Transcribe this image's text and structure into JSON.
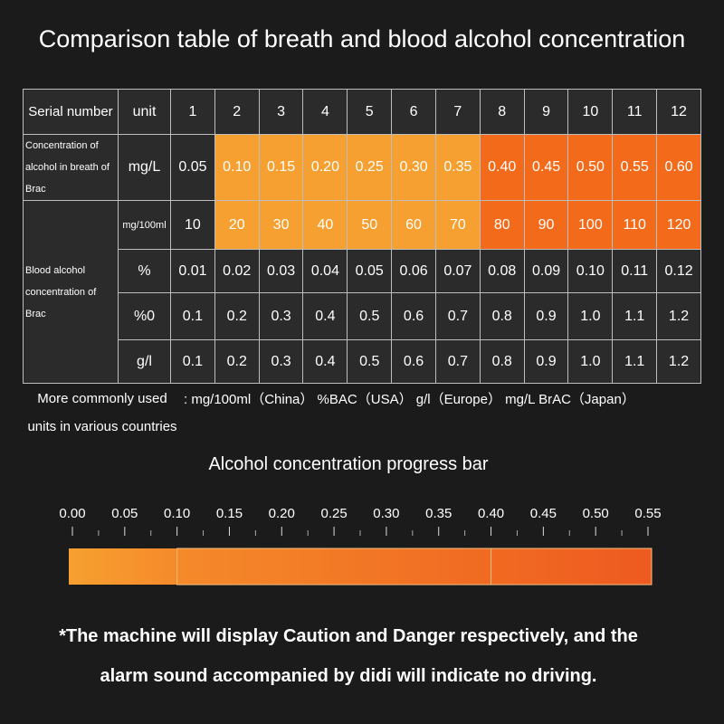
{
  "title": "Comparison table of breath and blood alcohol concentration",
  "table": {
    "header": [
      "Serial number",
      "unit",
      "1",
      "2",
      "3",
      "4",
      "5",
      "6",
      "7",
      "8",
      "9",
      "10",
      "11",
      "12"
    ],
    "groups": [
      {
        "label": "Concentration of alcohol in breath of Brac",
        "rows": [
          {
            "unit": "mg/L",
            "values": [
              "0.05",
              "0.10",
              "0.15",
              "0.20",
              "0.25",
              "0.30",
              "0.35",
              "0.40",
              "0.45",
              "0.50",
              "0.55",
              "0.60"
            ]
          }
        ]
      },
      {
        "label": "Blood alcohol concentration of Brac",
        "rows": [
          {
            "unit": "mg/100ml",
            "values": [
              "10",
              "20",
              "30",
              "40",
              "50",
              "60",
              "70",
              "80",
              "90",
              "100",
              "110",
              "120"
            ]
          },
          {
            "unit": "%",
            "values": [
              "0.01",
              "0.02",
              "0.03",
              "0.04",
              "0.05",
              "0.06",
              "0.07",
              "0.08",
              "0.09",
              "0.10",
              "0.11",
              "0.12"
            ]
          },
          {
            "unit": "%0",
            "values": [
              "0.1",
              "0.2",
              "0.3",
              "0.4",
              "0.5",
              "0.6",
              "0.7",
              "0.8",
              "0.9",
              "1.0",
              "1.1",
              "1.2"
            ]
          },
          {
            "unit": "g/l",
            "values": [
              "0.1",
              "0.2",
              "0.3",
              "0.4",
              "0.5",
              "0.6",
              "0.7",
              "0.8",
              "0.9",
              "1.0",
              "1.1",
              "1.2"
            ]
          }
        ]
      }
    ]
  },
  "units_note": {
    "label": "More commonly used units in various countries",
    "text": ": mg/100ml（China） %BAC（USA） g/l（Europe） mg/L BrAC（Japan）"
  },
  "progress_bar": {
    "title": "Alcohol concentration progress bar",
    "ticks": [
      "0.00",
      "0.05",
      "0.10",
      "0.15",
      "0.20",
      "0.25",
      "0.30",
      "0.35",
      "0.40",
      "0.45",
      "0.50",
      "0.55"
    ]
  },
  "footer": [
    "*The machine will display Caution and Danger respectively, and the",
    "alarm sound accompanied by didi will indicate no driving."
  ]
}
